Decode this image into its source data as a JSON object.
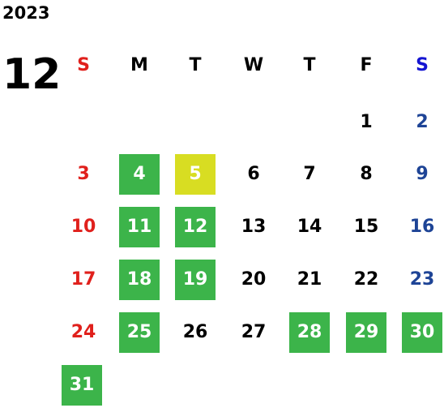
{
  "year": "2023",
  "month": "12",
  "weekdays": [
    "S",
    "M",
    "T",
    "W",
    "T",
    "F",
    "S"
  ],
  "weeks": [
    [
      null,
      null,
      null,
      null,
      null,
      {
        "label": "1"
      },
      {
        "label": "2"
      }
    ],
    [
      {
        "label": "3"
      },
      {
        "label": "4",
        "highlight": "green"
      },
      {
        "label": "5",
        "highlight": "yellow"
      },
      {
        "label": "6"
      },
      {
        "label": "7"
      },
      {
        "label": "8"
      },
      {
        "label": "9"
      }
    ],
    [
      {
        "label": "10"
      },
      {
        "label": "11",
        "highlight": "green"
      },
      {
        "label": "12",
        "highlight": "green"
      },
      {
        "label": "13"
      },
      {
        "label": "14"
      },
      {
        "label": "15"
      },
      {
        "label": "16"
      }
    ],
    [
      {
        "label": "17"
      },
      {
        "label": "18",
        "highlight": "green"
      },
      {
        "label": "19",
        "highlight": "green"
      },
      {
        "label": "20"
      },
      {
        "label": "21"
      },
      {
        "label": "22"
      },
      {
        "label": "23"
      }
    ],
    [
      {
        "label": "24"
      },
      {
        "label": "25",
        "highlight": "green"
      },
      {
        "label": "26"
      },
      {
        "label": "27"
      },
      {
        "label": "28",
        "highlight": "green"
      },
      {
        "label": "29",
        "highlight": "green"
      },
      {
        "label": "30",
        "highlight": "green"
      }
    ],
    [
      {
        "label": "31",
        "highlight": "green"
      },
      null,
      null,
      null,
      null,
      null,
      null
    ]
  ],
  "colors": {
    "sunday": "#e0201c",
    "saturday_header": "#1414d2",
    "saturday": "#1e4496",
    "text": "#000000",
    "green": "#3cb44a",
    "yellow": "#d8dd22",
    "highlight_text": "#ffffff"
  }
}
